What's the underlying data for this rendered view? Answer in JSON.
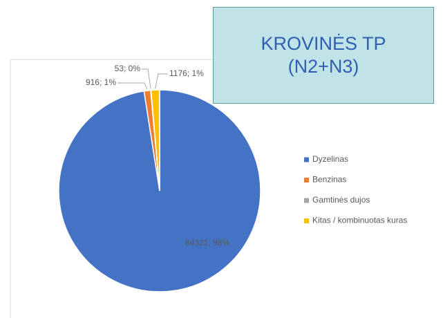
{
  "chart_data": {
    "type": "pie",
    "title": "KROVINĖS TP (N2+N3)",
    "categories": [
      "Dyzelinas",
      "Benzinas",
      "Gamtinės dujos",
      "Kitas / kombinuotas kuras"
    ],
    "values": [
      84321,
      916,
      53,
      1176
    ],
    "value_labels": [
      "84321; 98%",
      "916; 1%",
      "53; 0%",
      "1176; 1%"
    ],
    "colors": [
      "#4472c4",
      "#ed7d31",
      "#a5a5a5",
      "#ffc000"
    ],
    "legend": "right"
  }
}
